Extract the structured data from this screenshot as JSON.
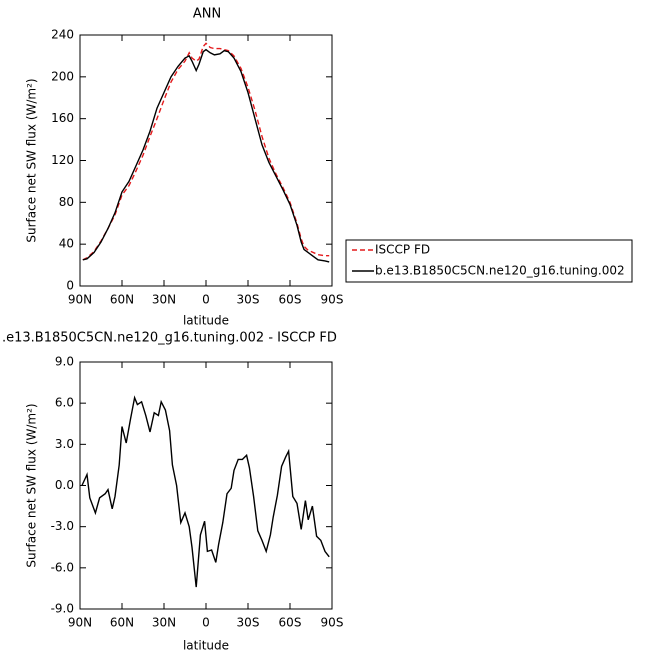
{
  "chart_data": [
    {
      "type": "line",
      "title": "ANN",
      "x_label": "latitude",
      "y_label": "Surface net SW flux (W/m²)",
      "x": [
        88,
        85,
        80,
        75,
        70,
        65,
        60,
        55,
        50,
        45,
        40,
        35,
        30,
        25,
        20,
        15,
        12,
        10,
        7,
        5,
        2,
        0,
        -3,
        -6,
        -10,
        -13,
        -16,
        -20,
        -25,
        -30,
        -35,
        -40,
        -45,
        -50,
        -55,
        -60,
        -65,
        -68,
        -70,
        -73,
        -75,
        -80,
        -85,
        -88
      ],
      "series": [
        {
          "name": "ISCCP FD",
          "color": "#e41a1c",
          "linestyle": "dashed",
          "values": [
            25,
            27,
            33,
            43,
            55,
            68,
            87,
            96,
            110,
            125,
            143,
            160,
            178,
            195,
            207,
            215,
            223,
            218,
            215,
            217,
            229,
            232,
            228,
            227,
            227,
            226,
            225,
            220,
            208,
            190,
            168,
            143,
            122,
            107,
            94,
            80,
            60,
            45,
            38,
            34,
            33,
            30,
            29,
            29
          ]
        },
        {
          "name": "b.e13.B1850C5CN.ne120_g16.tuning.002",
          "color": "#000000",
          "linestyle": "solid",
          "values": [
            25,
            26,
            32,
            42,
            55,
            70,
            90,
            100,
            115,
            130,
            148,
            170,
            185,
            200,
            210,
            218,
            220,
            215,
            206,
            212,
            224,
            226,
            223,
            221,
            222,
            225,
            224,
            218,
            205,
            185,
            160,
            135,
            118,
            105,
            92,
            78,
            58,
            42,
            35,
            32,
            30,
            25,
            24,
            23
          ]
        }
      ],
      "xlim": [
        90,
        -90
      ],
      "xticks": [
        {
          "value": 90,
          "label": "90N"
        },
        {
          "value": 60,
          "label": "60N"
        },
        {
          "value": 30,
          "label": "30N"
        },
        0,
        {
          "value": -30,
          "label": "30S"
        },
        {
          "value": -60,
          "label": "60S"
        },
        {
          "value": -90,
          "label": "90S"
        }
      ],
      "ylim": [
        0,
        240
      ],
      "yticks": [
        0,
        40,
        80,
        120,
        160,
        200,
        240
      ],
      "legend": "right"
    },
    {
      "type": "line",
      "title": ".e13.B1850C5CN.ne120_g16.tuning.002 - ISCCP FD",
      "x_label": "latitude",
      "y_label": "Surface net SW flux (W/m²)",
      "x": [
        88.6,
        85,
        83,
        79,
        76,
        72,
        70,
        67,
        65,
        62,
        60,
        57,
        54,
        51,
        49,
        46,
        43,
        40,
        37,
        34,
        32,
        29,
        26,
        24,
        21,
        18,
        15,
        12,
        10,
        7,
        4,
        1,
        -1,
        -4,
        -7,
        -9,
        -12,
        -15,
        -18,
        -20,
        -23,
        -26,
        -29,
        -31,
        -34,
        -37,
        -40,
        -43,
        -46,
        -48,
        -51,
        -54,
        -57,
        -59,
        -62,
        -65,
        -68,
        -71,
        -73,
        -76,
        -79,
        -82,
        -85,
        -88
      ],
      "series": [
        {
          "color": "#000000",
          "linestyle": "solid",
          "values": [
            0,
            0.8,
            -0.9,
            -2.0,
            -0.9,
            -0.6,
            -0.3,
            -1.7,
            -0.8,
            1.5,
            4.3,
            3.1,
            4.8,
            6.4,
            5.9,
            6.1,
            5.1,
            3.9,
            5.3,
            5.1,
            6.1,
            5.5,
            4.0,
            1.5,
            0,
            -2.7,
            -2.0,
            -3.0,
            -4.5,
            -7.4,
            -3.6,
            -2.6,
            -4.8,
            -4.7,
            -5.6,
            -4.3,
            -2.7,
            -0.6,
            -0.2,
            1.1,
            1.9,
            1.9,
            2.2,
            1.3,
            -0.8,
            -3.3,
            -4.0,
            -4.8,
            -3.6,
            -2.3,
            -0.7,
            1.4,
            2.1,
            2.5,
            -0.8,
            -1.3,
            -3.2,
            -1.1,
            -2.5,
            -1.5,
            -3.7,
            -4.0,
            -4.8,
            -5.2
          ]
        }
      ],
      "xlim": [
        90,
        -90
      ],
      "xticks": [
        {
          "value": 90,
          "label": "90N"
        },
        {
          "value": 60,
          "label": "60N"
        },
        {
          "value": 30,
          "label": "30N"
        },
        0,
        {
          "value": -30,
          "label": "30S"
        },
        {
          "value": -60,
          "label": "60S"
        },
        {
          "value": -90,
          "label": "90S"
        }
      ],
      "ylim": [
        -9,
        9
      ],
      "yticks": [
        {
          "value": -9,
          "label": "-9.0"
        },
        {
          "value": -6,
          "label": "-6.0"
        },
        {
          "value": -3,
          "label": "-3.0"
        },
        {
          "value": 0,
          "label": "0.0"
        },
        {
          "value": 3,
          "label": "3.0"
        },
        {
          "value": 6,
          "label": "6.0"
        },
        {
          "value": 9,
          "label": "9.0"
        }
      ]
    }
  ]
}
